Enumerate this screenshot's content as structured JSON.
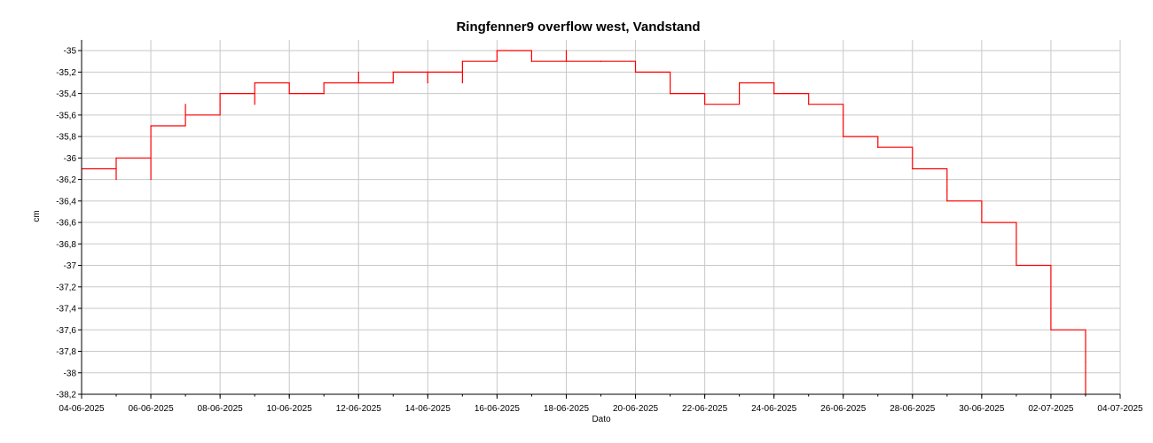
{
  "chart_data": {
    "type": "line",
    "title": "Ringfenner9 overflow west, Vandstand",
    "xlabel": "Dato",
    "ylabel": "cm",
    "x_ticks": [
      "04-06-2025",
      "06-06-2025",
      "08-06-2025",
      "10-06-2025",
      "12-06-2025",
      "14-06-2025",
      "16-06-2025",
      "18-06-2025",
      "20-06-2025",
      "22-06-2025",
      "24-06-2025",
      "26-06-2025",
      "28-06-2025",
      "30-06-2025",
      "02-07-2025",
      "04-07-2025"
    ],
    "y_ticks": [
      "-35",
      "-35,2",
      "-35,4",
      "-35,6",
      "-35,8",
      "-36",
      "-36,2",
      "-36,4",
      "-36,6",
      "-36,8",
      "-37",
      "-37,2",
      "-37,4",
      "-37,6",
      "-37,8",
      "-38",
      "-38,2"
    ],
    "xlim": [
      "04-06-2025",
      "04-07-2025"
    ],
    "ylim": [
      -38.2,
      -34.9
    ],
    "grid": true,
    "series": [
      {
        "color": "#ff0000",
        "x": [
          "04-06-2025",
          "04-06-2025",
          "05-06-2025",
          "05-06-2025",
          "05-06-2025",
          "06-06-2025",
          "06-06-2025",
          "06-06-2025",
          "07-06-2025",
          "07-06-2025",
          "07-06-2025",
          "08-06-2025",
          "08-06-2025",
          "09-06-2025",
          "09-06-2025",
          "09-06-2025",
          "10-06-2025",
          "11-06-2025",
          "11-06-2025",
          "12-06-2025",
          "12-06-2025",
          "13-06-2025",
          "13-06-2025",
          "14-06-2025",
          "14-06-2025",
          "14-06-2025",
          "15-06-2025",
          "15-06-2025",
          "16-06-2025",
          "16-06-2025",
          "17-06-2025",
          "17-06-2025",
          "18-06-2025",
          "18-06-2025",
          "19-06-2025",
          "19-06-2025",
          "20-06-2025",
          "20-06-2025",
          "21-06-2025",
          "21-06-2025",
          "22-06-2025",
          "22-06-2025",
          "23-06-2025",
          "23-06-2025",
          "24-06-2025",
          "24-06-2025",
          "25-06-2025",
          "25-06-2025",
          "26-06-2025",
          "26-06-2025",
          "27-06-2025",
          "27-06-2025",
          "28-06-2025",
          "28-06-2025",
          "29-06-2025",
          "29-06-2025",
          "30-06-2025",
          "30-06-2025",
          "01-07-2025",
          "01-07-2025",
          "02-07-2025",
          "02-07-2025",
          "03-07-2025",
          "03-07-2025"
        ],
        "y": [
          -36.2,
          -36.1,
          -36.2,
          -36.1,
          -36.0,
          -36.1,
          -36.2,
          -35.7,
          -35.6,
          -35.5,
          -35.6,
          -35.5,
          -35.4,
          -35.5,
          -35.4,
          -35.3,
          -35.4,
          -35.4,
          -35.3,
          -35.2,
          -35.3,
          -35.3,
          -35.2,
          -35.3,
          -35.2,
          -35.2,
          -35.3,
          -35.1,
          -35.0,
          -35.0,
          -35.0,
          -35.1,
          -35.0,
          -35.1,
          -35.1,
          -35.1,
          -35.2,
          -35.2,
          -35.3,
          -35.4,
          -35.4,
          -35.5,
          -35.4,
          -35.3,
          -35.3,
          -35.4,
          -35.4,
          -35.5,
          -35.6,
          -35.8,
          -35.9,
          -35.9,
          -35.9,
          -36.1,
          -36.3,
          -36.4,
          -36.5,
          -36.6,
          -36.9,
          -37.0,
          -37.4,
          -37.6,
          -37.9,
          -38.2
        ]
      }
    ]
  }
}
